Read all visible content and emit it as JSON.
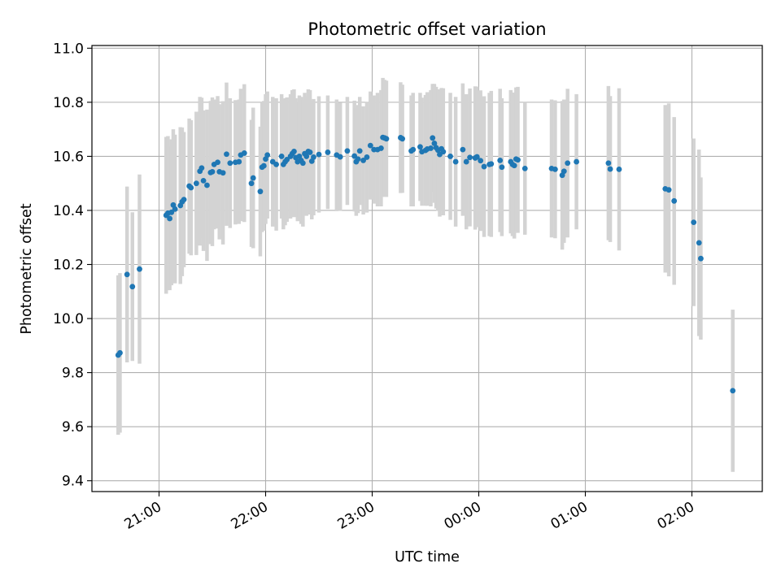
{
  "chart_data": {
    "type": "scatter",
    "title": "Photometric offset variation",
    "xlabel": "UTC time",
    "ylabel": "Photometric offset",
    "x_axis": {
      "kind": "time",
      "ticks": [
        "21:00",
        "22:00",
        "23:00",
        "00:00",
        "01:00",
        "02:00"
      ]
    },
    "y_axis": {
      "ylim": [
        9.36,
        11.01
      ],
      "ticks": [
        "9.4",
        "9.6",
        "9.8",
        "10.0",
        "10.2",
        "10.4",
        "10.6",
        "10.8",
        "11.0"
      ]
    },
    "grid": true,
    "colors": {
      "points": "#1f77b4",
      "error_bars": "#d3d3d3",
      "grid": "#b0b0b0"
    },
    "series": [
      {
        "x": [
          "20:37",
          "20:38",
          "20:42",
          "20:45",
          "20:49",
          "21:04",
          "21:05",
          "21:06",
          "21:07",
          "21:08",
          "21:09",
          "21:12",
          "21:13",
          "21:14",
          "21:17",
          "21:18",
          "21:21",
          "21:23",
          "21:24",
          "21:25",
          "21:27",
          "21:29",
          "21:30",
          "21:31",
          "21:33",
          "21:34",
          "21:36",
          "21:38",
          "21:40",
          "21:43",
          "21:45",
          "21:46",
          "21:48",
          "21:52",
          "21:53",
          "21:57",
          "21:58",
          "21:59",
          "22:00",
          "22:01",
          "22:04",
          "22:06",
          "22:09",
          "22:10",
          "22:11",
          "22:12",
          "22:14",
          "22:15",
          "22:16",
          "22:17",
          "22:18",
          "22:19",
          "22:20",
          "22:21",
          "22:22",
          "22:23",
          "22:24",
          "22:25",
          "22:26",
          "22:27",
          "22:30",
          "22:35",
          "22:40",
          "22:42",
          "22:46",
          "22:50",
          "22:51",
          "22:52",
          "22:53",
          "22:55",
          "22:57",
          "22:59",
          "23:01",
          "23:03",
          "23:05",
          "23:06",
          "23:07",
          "23:08",
          "23:16",
          "23:17",
          "23:22",
          "23:23",
          "23:27",
          "23:28",
          "23:30",
          "23:31",
          "23:33",
          "23:34",
          "23:35",
          "23:36",
          "23:37",
          "23:38",
          "23:39",
          "23:40",
          "23:44",
          "23:47",
          "23:51",
          "23:53",
          "23:55",
          "23:58",
          "23:59",
          "00:01",
          "00:03",
          "00:06",
          "00:07",
          "00:12",
          "00:13",
          "00:18",
          "00:19",
          "00:20",
          "00:21",
          "00:22",
          "00:26",
          "00:41",
          "00:43",
          "00:47",
          "00:48",
          "00:50",
          "00:55",
          "01:13",
          "01:14",
          "01:19",
          "01:45",
          "01:47",
          "01:50",
          "02:01",
          "02:04",
          "02:05",
          "02:23"
        ],
        "y": [
          9.865,
          9.873,
          10.163,
          10.118,
          10.183,
          10.382,
          10.39,
          10.37,
          10.393,
          10.42,
          10.405,
          10.418,
          10.432,
          10.44,
          10.49,
          10.484,
          10.5,
          10.545,
          10.557,
          10.51,
          10.493,
          10.54,
          10.543,
          10.57,
          10.578,
          10.543,
          10.539,
          10.608,
          10.575,
          10.578,
          10.58,
          10.605,
          10.612,
          10.5,
          10.52,
          10.47,
          10.56,
          10.565,
          10.59,
          10.605,
          10.58,
          10.57,
          10.6,
          10.57,
          10.58,
          10.588,
          10.6,
          10.61,
          10.618,
          10.595,
          10.58,
          10.6,
          10.585,
          10.575,
          10.61,
          10.6,
          10.618,
          10.615,
          10.582,
          10.597,
          10.607,
          10.615,
          10.605,
          10.598,
          10.62,
          10.601,
          10.58,
          10.59,
          10.62,
          10.585,
          10.597,
          10.64,
          10.625,
          10.625,
          10.63,
          10.67,
          10.668,
          10.665,
          10.669,
          10.665,
          10.62,
          10.625,
          10.635,
          10.617,
          10.622,
          10.627,
          10.63,
          10.668,
          10.648,
          10.632,
          10.623,
          10.607,
          10.628,
          10.617,
          10.6,
          10.58,
          10.625,
          10.58,
          10.596,
          10.594,
          10.598,
          10.584,
          10.562,
          10.57,
          10.572,
          10.585,
          10.56,
          10.58,
          10.57,
          10.566,
          10.59,
          10.587,
          10.555,
          10.555,
          10.552,
          10.53,
          10.545,
          10.575,
          10.58,
          10.575,
          10.553,
          10.552,
          10.48,
          10.476,
          10.435,
          10.356,
          10.28,
          10.222,
          9.733
        ],
        "err": [
          0.295,
          0.295,
          0.325,
          0.275,
          0.35,
          0.29,
          0.285,
          0.265,
          0.27,
          0.28,
          0.275,
          0.29,
          0.275,
          0.25,
          0.25,
          0.25,
          0.265,
          0.275,
          0.26,
          0.26,
          0.28,
          0.265,
          0.275,
          0.24,
          0.245,
          0.25,
          0.265,
          0.265,
          0.24,
          0.23,
          0.23,
          0.245,
          0.255,
          0.235,
          0.26,
          0.24,
          0.24,
          0.24,
          0.24,
          0.235,
          0.24,
          0.245,
          0.23,
          0.24,
          0.235,
          0.23,
          0.23,
          0.235,
          0.23,
          0.22,
          0.22,
          0.225,
          0.235,
          0.235,
          0.225,
          0.22,
          0.23,
          0.23,
          0.215,
          0.215,
          0.215,
          0.21,
          0.205,
          0.2,
          0.2,
          0.205,
          0.2,
          0.2,
          0.2,
          0.2,
          0.205,
          0.2,
          0.2,
          0.21,
          0.215,
          0.22,
          0.215,
          0.215,
          0.205,
          0.2,
          0.205,
          0.21,
          0.2,
          0.2,
          0.205,
          0.21,
          0.215,
          0.2,
          0.22,
          0.225,
          0.225,
          0.23,
          0.225,
          0.235,
          0.235,
          0.24,
          0.245,
          0.25,
          0.255,
          0.265,
          0.26,
          0.26,
          0.26,
          0.265,
          0.27,
          0.265,
          0.255,
          0.265,
          0.265,
          0.27,
          0.265,
          0.27,
          0.245,
          0.255,
          0.255,
          0.275,
          0.265,
          0.275,
          0.25,
          0.285,
          0.27,
          0.3,
          0.31,
          0.32,
          0.31,
          0.31,
          0.345,
          0.3,
          0.3
        ]
      }
    ]
  }
}
